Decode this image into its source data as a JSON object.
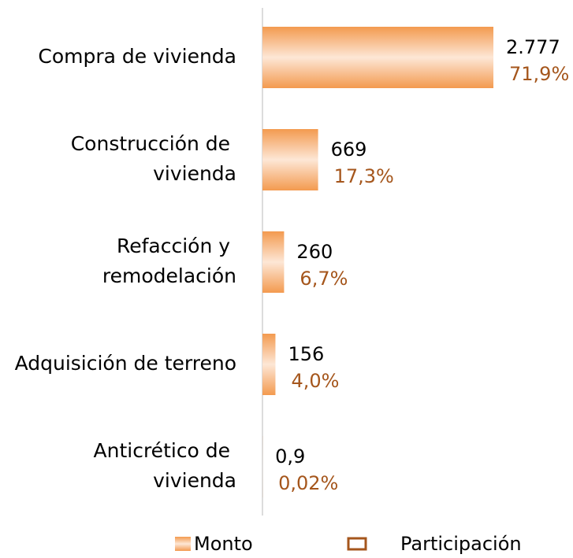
{
  "chart_data": {
    "type": "bar",
    "orientation": "horizontal",
    "categories": [
      "Compra de vivienda",
      "Construcción de vivienda",
      "Refacción y remodelación",
      "Adquisición de terreno",
      "Anticrético de vivienda"
    ],
    "series": [
      {
        "name": "Monto",
        "color": "#f39a4f",
        "values": [
          2777,
          669,
          260,
          156,
          0.9
        ],
        "value_labels": [
          "2.777",
          "669",
          "260",
          "156",
          "0,9"
        ]
      },
      {
        "name": "Participación",
        "color": "#a5561c",
        "values": [
          71.9,
          17.3,
          6.7,
          4.0,
          0.02
        ],
        "value_labels": [
          "71,9%",
          "17,3%",
          "6,7%",
          "4,0%",
          "0,02%"
        ]
      }
    ],
    "legend": "bottom"
  }
}
